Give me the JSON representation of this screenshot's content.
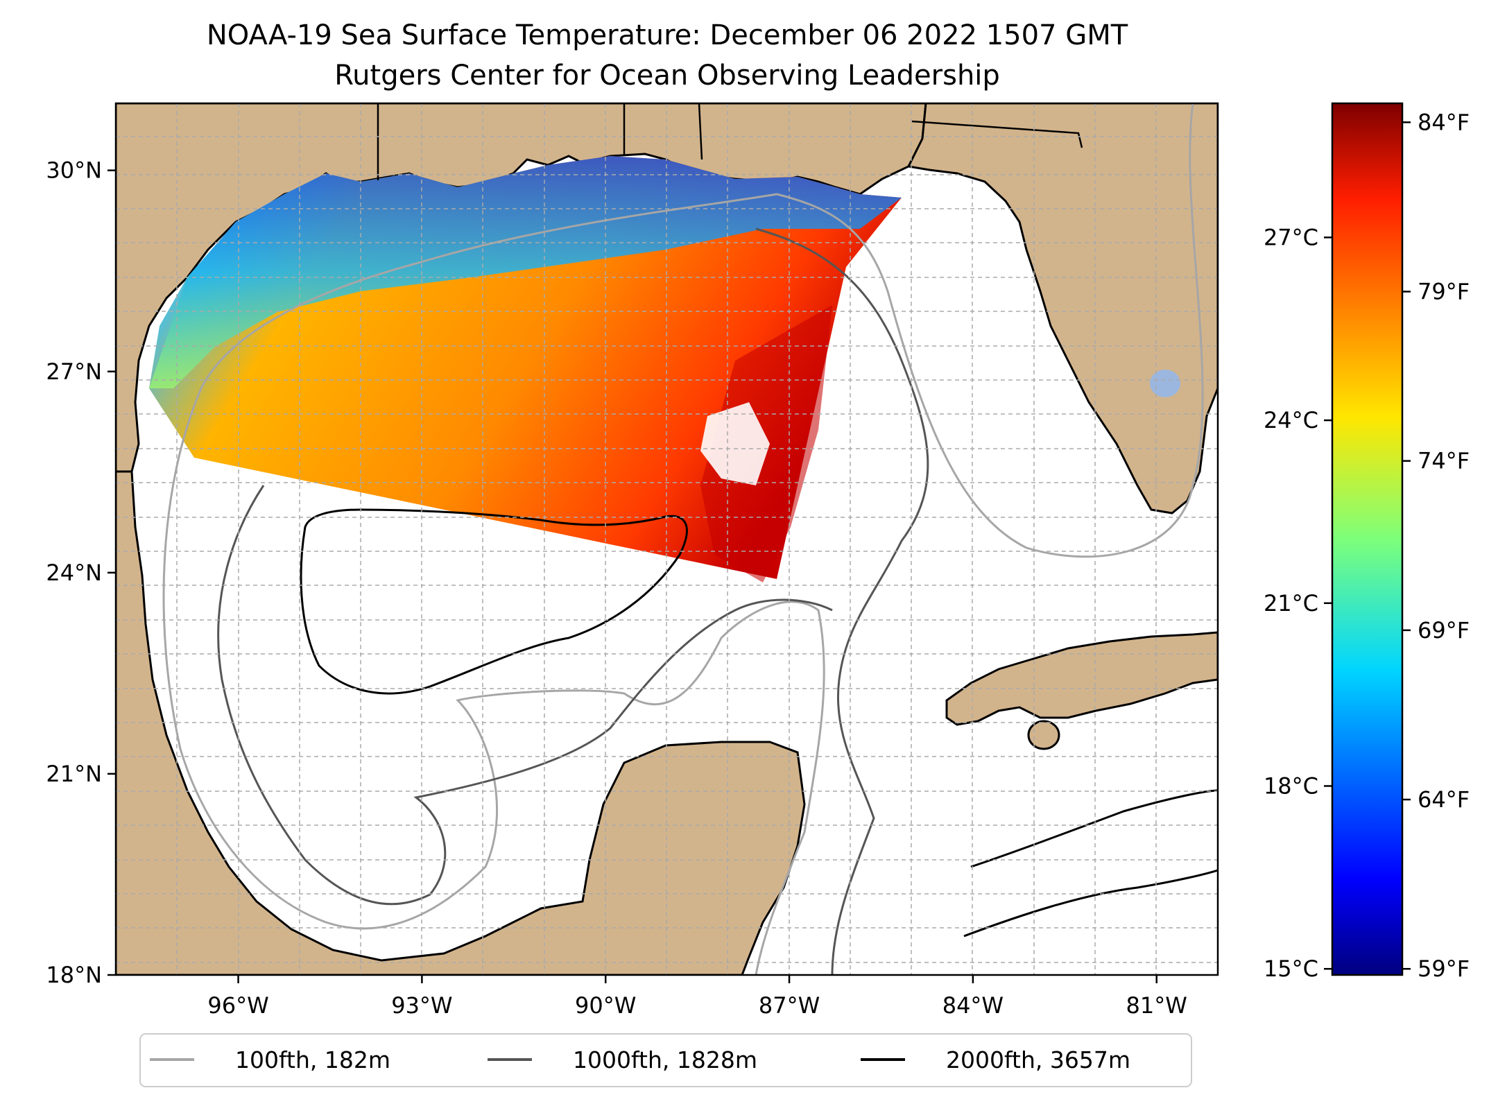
{
  "chart_data": {
    "type": "heatmap",
    "title": "NOAA-19 Sea Surface Temperature: December 06 2022 1507 GMT",
    "subtitle": "Rutgers Center for Ocean Observing Leadership",
    "map_extent": {
      "lon_min": -98,
      "lon_max": -80,
      "lat_min": 18,
      "lat_max": 31
    },
    "x_ticks": [
      "96°W",
      "93°W",
      "90°W",
      "87°W",
      "84°W",
      "81°W"
    ],
    "x_tick_values": [
      -96,
      -93,
      -90,
      -87,
      -84,
      -81
    ],
    "y_ticks": [
      "30°N",
      "27°N",
      "24°N",
      "21°N",
      "18°N"
    ],
    "y_tick_values": [
      30,
      27,
      24,
      21,
      18
    ],
    "grid": true,
    "colorbar": {
      "celsius_ticks": [
        "27°C",
        "24°C",
        "21°C",
        "18°C",
        "15°C"
      ],
      "celsius_values": [
        27,
        24,
        21,
        18,
        15
      ],
      "fahrenheit_ticks": [
        "84°F",
        "79°F",
        "74°F",
        "69°F",
        "64°F",
        "59°F"
      ],
      "fahrenheit_values": [
        84,
        79,
        74,
        69,
        64,
        59
      ],
      "range_celsius": [
        14.9,
        29.2
      ],
      "colormap": "jet"
    },
    "legend": [
      {
        "label": "100fth, 182m",
        "color": "#a6a6a6"
      },
      {
        "label": "1000fth, 1828m",
        "color": "#555555"
      },
      {
        "label": "2000fth, 3657m",
        "color": "#000000"
      }
    ],
    "legend_position": "bottom-center",
    "colors": {
      "land": "#d2b48c",
      "lakes": "#9bb7e0"
    }
  }
}
